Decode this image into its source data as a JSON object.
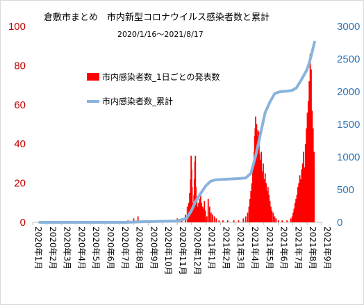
{
  "chart_data": {
    "type": "bar+line",
    "title": "倉敷市まとめ　市内新型コロナウイルス感染者数と累計",
    "subtitle": "2020/1/16～2021/8/17",
    "legend_placement": "top-left inside plot",
    "grid": false,
    "y_left": {
      "range": [
        0,
        100
      ],
      "ticks": [
        "0",
        "20",
        "40",
        "60",
        "80",
        "100"
      ],
      "color": "#c00000"
    },
    "y_right": {
      "range": [
        0,
        3000
      ],
      "ticks": [
        "0",
        "500",
        "1000",
        "1500",
        "2000",
        "2500",
        "3000"
      ],
      "color": "#2e75b6"
    },
    "x_ticks": [
      "2020年1月",
      "2020年2月",
      "2020年3月",
      "2020年4月",
      "2020年5月",
      "2020年6月",
      "2020年7月",
      "2020年8月",
      "2020年9月",
      "2020年10月",
      "2020年11月",
      "2020年12月",
      "2021年1月",
      "2021年2月",
      "2021年3月",
      "2021年4月",
      "2021年5月",
      "2021年6月",
      "2021年7月",
      "2021年8月",
      "2021年9月"
    ],
    "series": [
      {
        "name": "市内感染者数_1日ごとの発表数",
        "kind": "bar",
        "axis": "left",
        "color": "#ff0000",
        "points": [
          [
            "2020-07-20",
            1
          ],
          [
            "2020-08-01",
            2
          ],
          [
            "2020-08-10",
            3
          ],
          [
            "2020-08-20",
            1
          ],
          [
            "2020-09-05",
            1
          ],
          [
            "2020-09-20",
            1
          ],
          [
            "2020-10-10",
            1
          ],
          [
            "2020-11-01",
            2
          ],
          [
            "2020-11-10",
            2
          ],
          [
            "2020-11-18",
            4
          ],
          [
            "2020-11-22",
            8
          ],
          [
            "2020-11-25",
            10
          ],
          [
            "2020-11-27",
            15
          ],
          [
            "2020-11-29",
            22
          ],
          [
            "2020-11-30",
            34
          ],
          [
            "2020-12-01",
            27
          ],
          [
            "2020-12-02",
            18
          ],
          [
            "2020-12-03",
            10
          ],
          [
            "2020-12-04",
            6
          ],
          [
            "2020-12-05",
            8
          ],
          [
            "2020-12-06",
            14
          ],
          [
            "2020-12-07",
            22
          ],
          [
            "2020-12-08",
            31
          ],
          [
            "2020-12-09",
            34
          ],
          [
            "2020-12-10",
            18
          ],
          [
            "2020-12-12",
            12
          ],
          [
            "2020-12-14",
            8
          ],
          [
            "2020-12-16",
            10
          ],
          [
            "2020-12-18",
            12
          ],
          [
            "2020-12-20",
            14
          ],
          [
            "2020-12-22",
            10
          ],
          [
            "2020-12-24",
            8
          ],
          [
            "2020-12-26",
            7
          ],
          [
            "2020-12-28",
            11
          ],
          [
            "2020-12-30",
            6
          ],
          [
            "2021-01-02",
            3
          ],
          [
            "2021-01-05",
            12
          ],
          [
            "2021-01-08",
            8
          ],
          [
            "2021-01-11",
            5
          ],
          [
            "2021-01-14",
            4
          ],
          [
            "2021-01-18",
            3
          ],
          [
            "2021-01-22",
            2
          ],
          [
            "2021-01-28",
            1
          ],
          [
            "2021-02-05",
            1
          ],
          [
            "2021-02-15",
            1
          ],
          [
            "2021-02-28",
            1
          ],
          [
            "2021-03-10",
            1
          ],
          [
            "2021-03-20",
            2
          ],
          [
            "2021-03-25",
            3
          ],
          [
            "2021-03-29",
            5
          ],
          [
            "2021-04-01",
            8
          ],
          [
            "2021-04-03",
            12
          ],
          [
            "2021-04-05",
            16
          ],
          [
            "2021-04-07",
            20
          ],
          [
            "2021-04-09",
            26
          ],
          [
            "2021-04-10",
            30
          ],
          [
            "2021-04-12",
            36
          ],
          [
            "2021-04-13",
            44
          ],
          [
            "2021-04-14",
            48
          ],
          [
            "2021-04-15",
            54
          ],
          [
            "2021-04-16",
            42
          ],
          [
            "2021-04-17",
            50
          ],
          [
            "2021-04-18",
            44
          ],
          [
            "2021-04-19",
            38
          ],
          [
            "2021-04-20",
            47
          ],
          [
            "2021-04-21",
            40
          ],
          [
            "2021-04-22",
            46
          ],
          [
            "2021-04-23",
            35
          ],
          [
            "2021-04-25",
            32
          ],
          [
            "2021-04-27",
            36
          ],
          [
            "2021-04-29",
            26
          ],
          [
            "2021-05-01",
            30
          ],
          [
            "2021-05-03",
            22
          ],
          [
            "2021-05-05",
            25
          ],
          [
            "2021-05-07",
            20
          ],
          [
            "2021-05-09",
            16
          ],
          [
            "2021-05-11",
            18
          ],
          [
            "2021-05-13",
            14
          ],
          [
            "2021-05-15",
            11
          ],
          [
            "2021-05-17",
            8
          ],
          [
            "2021-05-19",
            6
          ],
          [
            "2021-05-22",
            5
          ],
          [
            "2021-05-25",
            3
          ],
          [
            "2021-05-28",
            2
          ],
          [
            "2021-06-02",
            1
          ],
          [
            "2021-06-10",
            1
          ],
          [
            "2021-06-20",
            1
          ],
          [
            "2021-06-28",
            2
          ],
          [
            "2021-07-01",
            3
          ],
          [
            "2021-07-03",
            5
          ],
          [
            "2021-07-05",
            7
          ],
          [
            "2021-07-07",
            10
          ],
          [
            "2021-07-09",
            12
          ],
          [
            "2021-07-11",
            14
          ],
          [
            "2021-07-13",
            18
          ],
          [
            "2021-07-15",
            20
          ],
          [
            "2021-07-17",
            24
          ],
          [
            "2021-07-19",
            22
          ],
          [
            "2021-07-21",
            27
          ],
          [
            "2021-07-23",
            30
          ],
          [
            "2021-07-25",
            36
          ],
          [
            "2021-07-27",
            28
          ],
          [
            "2021-07-29",
            40
          ],
          [
            "2021-07-31",
            48
          ],
          [
            "2021-08-02",
            56
          ],
          [
            "2021-08-04",
            62
          ],
          [
            "2021-08-06",
            72
          ],
          [
            "2021-08-08",
            86
          ],
          [
            "2021-08-10",
            78
          ],
          [
            "2021-08-12",
            57
          ],
          [
            "2021-08-14",
            48
          ],
          [
            "2021-08-16",
            36
          ]
        ]
      },
      {
        "name": "市内感染者数_累計",
        "kind": "line",
        "axis": "right",
        "color": "#89b3dc",
        "points": [
          [
            "2020-01-16",
            0
          ],
          [
            "2020-07-15",
            0
          ],
          [
            "2020-08-20",
            10
          ],
          [
            "2020-11-01",
            20
          ],
          [
            "2020-11-20",
            60
          ],
          [
            "2020-11-30",
            170
          ],
          [
            "2020-12-10",
            330
          ],
          [
            "2020-12-20",
            440
          ],
          [
            "2020-12-31",
            560
          ],
          [
            "2021-01-10",
            630
          ],
          [
            "2021-01-20",
            650
          ],
          [
            "2021-02-10",
            660
          ],
          [
            "2021-03-10",
            670
          ],
          [
            "2021-03-25",
            680
          ],
          [
            "2021-04-05",
            750
          ],
          [
            "2021-04-15",
            1020
          ],
          [
            "2021-04-25",
            1350
          ],
          [
            "2021-05-05",
            1680
          ],
          [
            "2021-05-15",
            1840
          ],
          [
            "2021-05-25",
            1970
          ],
          [
            "2021-06-05",
            2000
          ],
          [
            "2021-06-20",
            2010
          ],
          [
            "2021-07-01",
            2020
          ],
          [
            "2021-07-10",
            2060
          ],
          [
            "2021-07-20",
            2180
          ],
          [
            "2021-07-31",
            2320
          ],
          [
            "2021-08-05",
            2420
          ],
          [
            "2021-08-10",
            2550
          ],
          [
            "2021-08-17",
            2760
          ]
        ]
      }
    ]
  }
}
